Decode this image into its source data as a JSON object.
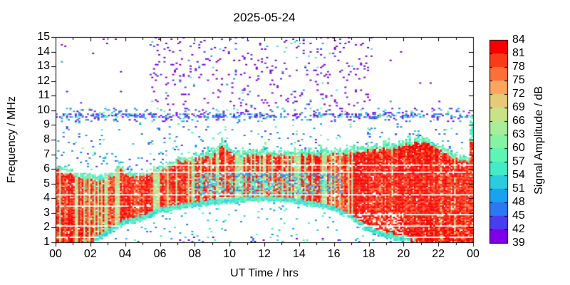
{
  "chart_data": {
    "type": "heatmap",
    "title": "2025-05-24",
    "xlabel": "UT Time / hrs",
    "ylabel": "Frequency / MHz",
    "colorbar_label": "Signal Amplitude / dB",
    "x_range_hours": [
      0,
      24
    ],
    "y_range_mhz": [
      1,
      15
    ],
    "x_tick_hours": [
      0,
      2,
      4,
      6,
      8,
      10,
      12,
      14,
      16,
      18,
      20,
      22,
      24
    ],
    "x_tick_labels": [
      "00",
      "02",
      "04",
      "06",
      "08",
      "10",
      "12",
      "14",
      "16",
      "18",
      "20",
      "22",
      "00"
    ],
    "x_minor_tick_step_hours": 1,
    "y_tick_mhz": [
      1,
      2,
      3,
      4,
      5,
      6,
      7,
      8,
      9,
      10,
      11,
      12,
      13,
      14,
      15
    ],
    "y_tick_labels": [
      "1",
      "2",
      "3",
      "4",
      "5",
      "6",
      "7",
      "8",
      "9",
      "10",
      "11",
      "12",
      "13",
      "14",
      "15"
    ],
    "grid": false,
    "colorbar": {
      "min_db": 39,
      "max_db": 84,
      "step_db": 3,
      "tick_labels_top_to_bottom": [
        "84",
        "81",
        "78",
        "75",
        "72",
        "69",
        "66",
        "63",
        "60",
        "57",
        "54",
        "51",
        "48",
        "45",
        "42",
        "39"
      ],
      "colors_low_to_high": [
        "#7e00e8",
        "#4a3cf0",
        "#2b78f0",
        "#18a2f2",
        "#2accdd",
        "#44ecc6",
        "#5ff4b2",
        "#84f4a4",
        "#a8ee9a",
        "#c9e287",
        "#e7ca77",
        "#fba55e",
        "#fb7038",
        "#f93c18",
        "#f80000"
      ]
    },
    "spectrogram": {
      "seed": 20250524,
      "cols": 240,
      "rows": 145,
      "band_top_envelope": {
        "t": [
          0,
          0.7,
          1.5,
          2.5,
          3.2,
          3.7,
          4.1,
          4.7,
          5.3,
          6,
          7,
          8,
          9,
          9.7,
          10.2,
          11,
          12,
          13,
          14,
          15,
          16,
          17,
          18,
          19,
          20,
          20.9,
          21.8,
          22.5,
          23.2,
          24
        ],
        "f": [
          6.05,
          5.7,
          5.35,
          5.25,
          5.55,
          6.1,
          5.6,
          5.35,
          5.6,
          5.9,
          6.4,
          6.6,
          6.9,
          7.55,
          7.1,
          6.85,
          7.0,
          6.9,
          7.0,
          6.9,
          7.0,
          7.1,
          7.25,
          7.4,
          7.6,
          7.85,
          7.5,
          7.05,
          6.6,
          6.35
        ]
      },
      "band_bottom_envelope": {
        "t": [
          0,
          2,
          2.5,
          3,
          4,
          5,
          6,
          7,
          8,
          9,
          10,
          11,
          12,
          13,
          14,
          15,
          16,
          16.8,
          17.4,
          18,
          19,
          20,
          21,
          24
        ],
        "f": [
          0.95,
          0.95,
          1.1,
          1.55,
          2.2,
          2.5,
          3.0,
          3.2,
          3.4,
          3.55,
          3.65,
          3.75,
          3.8,
          3.75,
          3.6,
          3.4,
          3.1,
          2.7,
          2.2,
          1.7,
          1.3,
          1.1,
          0.95,
          0.95
        ]
      },
      "gap_lines_mhz": [
        6.25,
        5.8,
        4.25,
        2.15
      ],
      "partial_gap_lines": [
        {
          "f": 3.5,
          "t0": 0,
          "t1": 5.5
        },
        {
          "f": 2.85,
          "t0": 16.5,
          "t1": 24
        },
        {
          "f": 1.3,
          "t0": 0,
          "t1": 2.5
        },
        {
          "f": 1.3,
          "t0": 20,
          "t1": 24
        }
      ],
      "hf_speckle_band": {
        "f0": 9.2,
        "f1": 10.2,
        "dense_f0": 9.45,
        "dense_f1": 9.78,
        "density": 0.12,
        "dense_density": 0.45
      },
      "sporadic_purple_region": {
        "t0": 5.4,
        "t1": 18.2,
        "f0": 10.2,
        "f1": 15.0,
        "density": 0.05
      },
      "above_band_speckle_density": 0.028,
      "below_band_speckle_density": 0.03,
      "evening_low_strip": {
        "t0": 16.8,
        "t1": 20.0,
        "f_max": 3.0
      },
      "midday_hours": [
        8,
        16.5
      ]
    }
  }
}
